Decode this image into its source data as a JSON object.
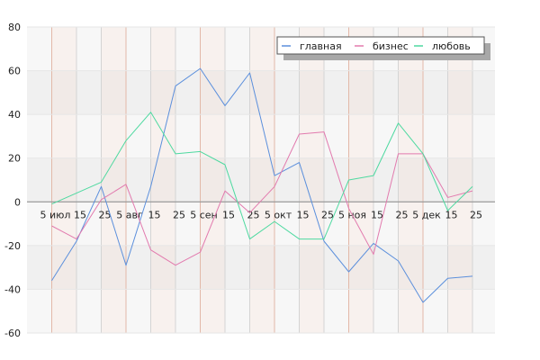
{
  "chart_data": {
    "type": "line",
    "title": "",
    "xlabel": "",
    "ylabel": "",
    "ylim": [
      -60,
      80
    ],
    "yticks": [
      80,
      60,
      40,
      20,
      0,
      -20,
      -40,
      -60
    ],
    "x_tick_labels": [
      "5 июл",
      "15",
      "25",
      "5 авг",
      "15",
      "25",
      "5 сен",
      "15",
      "25",
      "5 окт",
      "15",
      "25",
      "5 ноя",
      "15",
      "25",
      "5 дек",
      "15",
      "25"
    ],
    "legend_position": "top-right",
    "grid": true,
    "series": [
      {
        "name": "главная",
        "color": "#5b8fdc",
        "values": [
          -36,
          -18,
          7,
          -29,
          7,
          53,
          61,
          44,
          59,
          12,
          18,
          -18,
          -32,
          -19,
          -27,
          -46,
          -35,
          -34
        ]
      },
      {
        "name": "бизнес",
        "color": "#e27aae",
        "values": [
          -11,
          -17,
          1,
          8,
          -22,
          -29,
          -23,
          5,
          -5,
          7,
          31,
          32,
          -3,
          -24,
          22,
          22,
          2,
          5
        ]
      },
      {
        "name": "любовь",
        "color": "#4ed9a0",
        "values": [
          -1,
          4,
          9,
          28,
          41,
          22,
          23,
          17,
          -17,
          -9,
          -17,
          -17,
          10,
          12,
          36,
          22,
          -4,
          7
        ]
      }
    ]
  }
}
